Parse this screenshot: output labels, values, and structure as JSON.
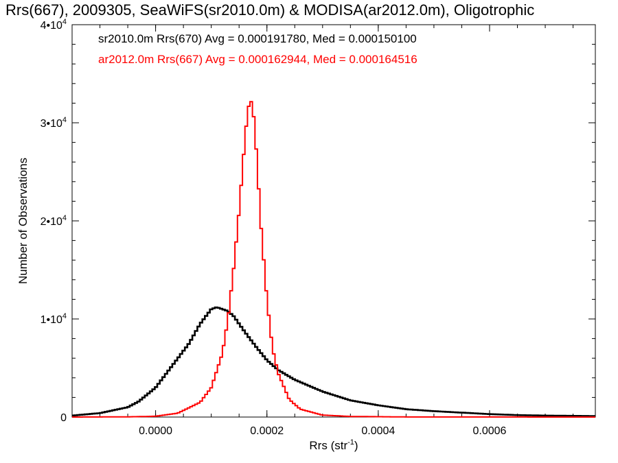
{
  "chart_data": {
    "type": "line",
    "title": "Rrs(667), 2009305, SeaWiFS(sr2010.0m) & MODISA(ar2012.0m), Oligotrophic",
    "xlabel": "Rrs (str",
    "xlabel_sup": "-1",
    "xlabel_close": ")",
    "ylabel": "Number of Observations",
    "xlim": [
      -0.00015,
      0.00079
    ],
    "ylim": [
      0,
      40000
    ],
    "x_ticks": [
      {
        "value": 0.0,
        "label": "0.0000"
      },
      {
        "value": 0.0002,
        "label": "0.0002"
      },
      {
        "value": 0.0004,
        "label": "0.0004"
      },
      {
        "value": 0.0006,
        "label": "0.0006"
      }
    ],
    "y_ticks": [
      {
        "value": 0,
        "base": "0",
        "exp": ""
      },
      {
        "value": 10000,
        "base": "1•10",
        "exp": "4"
      },
      {
        "value": 20000,
        "base": "2•10",
        "exp": "4"
      },
      {
        "value": 30000,
        "base": "3•10",
        "exp": "4"
      },
      {
        "value": 40000,
        "base": "4•10",
        "exp": "4"
      }
    ],
    "legend_position": "top-left",
    "series": [
      {
        "name": "sr2010.0m Rrs(670) Avg = 0.000191780, Med = 0.000150100",
        "color": "#000000",
        "stat_avg": 0.00019178,
        "stat_med": 0.0001501,
        "x": [
          -0.00015,
          -0.0001,
          -5e-05,
          -3e-05,
          0.0,
          2e-05,
          4e-05,
          6e-05,
          8e-05,
          0.0001,
          0.00011,
          0.00012,
          0.00013,
          0.00014,
          0.00015,
          0.00016,
          0.00018,
          0.0002,
          0.00022,
          0.00025,
          0.0003,
          0.00035,
          0.0004,
          0.00045,
          0.0005,
          0.00055,
          0.0006,
          0.00065,
          0.0007,
          0.00079
        ],
        "y": [
          150,
          400,
          1000,
          1600,
          3000,
          4500,
          6000,
          7500,
          9500,
          11000,
          11200,
          11000,
          10800,
          10300,
          9500,
          8700,
          7200,
          5800,
          4800,
          3800,
          2600,
          1700,
          1200,
          800,
          600,
          450,
          300,
          200,
          150,
          100
        ]
      },
      {
        "name": "ar2012.0m Rrs(667) Avg = 0.000162944, Med = 0.000164516",
        "color": "#ff0000",
        "stat_avg": 0.000162944,
        "stat_med": 0.000164516,
        "x": [
          -0.00015,
          -5e-05,
          0.0,
          4e-05,
          8e-05,
          0.0001,
          0.00012,
          0.00013,
          0.00014,
          0.00015,
          0.00016,
          0.000165,
          0.00017,
          0.000175,
          0.00018,
          0.00019,
          0.0002,
          0.00021,
          0.00022,
          0.00024,
          0.00026,
          0.0003,
          0.00035,
          0.00045,
          0.00079
        ],
        "y": [
          0,
          20,
          80,
          400,
          1500,
          3000,
          6500,
          10000,
          15000,
          21000,
          28000,
          31000,
          32500,
          31500,
          28000,
          19000,
          12000,
          7000,
          4500,
          1800,
          800,
          200,
          60,
          10,
          0
        ]
      }
    ]
  }
}
